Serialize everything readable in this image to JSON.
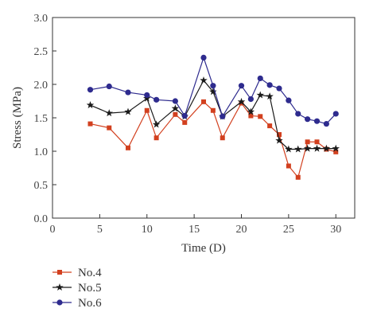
{
  "chart_data": {
    "type": "line",
    "xlabel": "Time (D)",
    "ylabel": "Stress (MPa)",
    "xlim": [
      0,
      32
    ],
    "ylim": [
      0,
      3.0
    ],
    "xticks": [
      "0",
      "5",
      "10",
      "15",
      "20",
      "25",
      "30"
    ],
    "yticks": [
      "0.0",
      "0.5",
      "1.0",
      "1.5",
      "2.0",
      "2.5",
      "3.0"
    ],
    "grid": false,
    "legend_position": "below-left",
    "series": [
      {
        "name": "No.4",
        "color": "#d2401f",
        "marker": "square",
        "x": [
          4,
          6,
          8,
          10,
          11,
          13,
          14,
          16,
          17,
          18,
          20,
          21,
          22,
          23,
          24,
          25,
          26,
          27,
          28,
          29,
          30
        ],
        "y": [
          1.41,
          1.35,
          1.05,
          1.61,
          1.2,
          1.55,
          1.43,
          1.74,
          1.61,
          1.2,
          1.72,
          1.53,
          1.52,
          1.38,
          1.25,
          0.78,
          0.61,
          1.14,
          1.14,
          1.03,
          0.99
        ]
      },
      {
        "name": "No.5",
        "color": "#1a1a1a",
        "marker": "star",
        "x": [
          4,
          6,
          8,
          10,
          11,
          13,
          14,
          16,
          17,
          18,
          20,
          21,
          22,
          23,
          24,
          25,
          26,
          27,
          28,
          29,
          30
        ],
        "y": [
          1.69,
          1.57,
          1.59,
          1.79,
          1.4,
          1.64,
          1.52,
          2.06,
          1.89,
          1.52,
          1.74,
          1.59,
          1.84,
          1.82,
          1.16,
          1.03,
          1.03,
          1.04,
          1.04,
          1.04,
          1.04
        ]
      },
      {
        "name": "No.6",
        "color": "#2e2b8e",
        "marker": "circle",
        "x": [
          4,
          6,
          8,
          10,
          11,
          13,
          14,
          16,
          17,
          18,
          20,
          21,
          22,
          23,
          24,
          25,
          26,
          27,
          28,
          29,
          30
        ],
        "y": [
          1.92,
          1.97,
          1.88,
          1.84,
          1.77,
          1.75,
          1.53,
          2.4,
          1.98,
          1.52,
          1.98,
          1.78,
          2.09,
          1.99,
          1.94,
          1.76,
          1.56,
          1.48,
          1.45,
          1.41,
          1.56
        ]
      }
    ]
  }
}
